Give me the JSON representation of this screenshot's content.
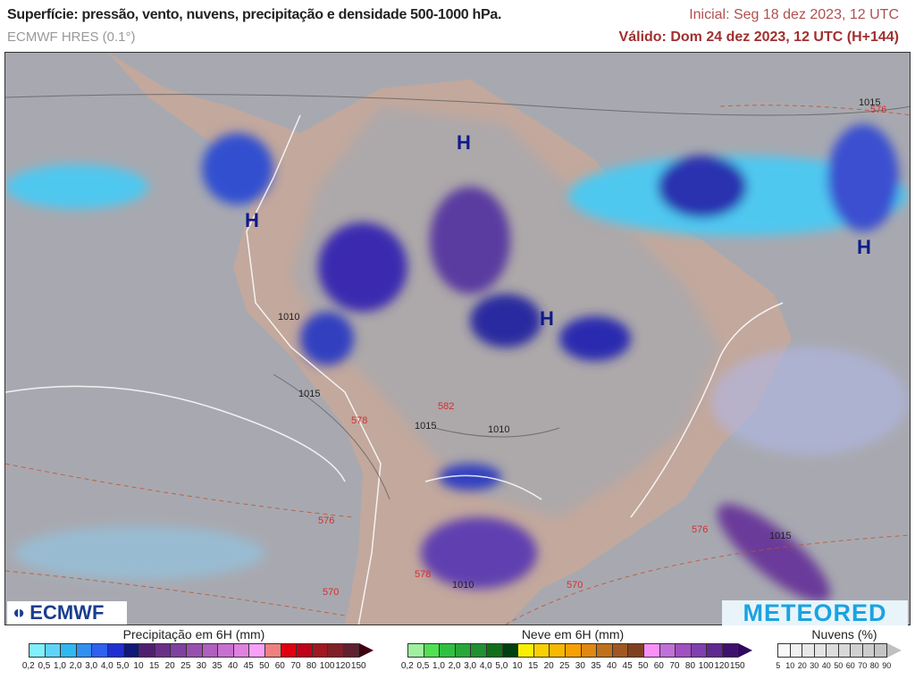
{
  "header": {
    "title": "Superfície: pressão, vento, nuvens, precipitação e densidade 500-1000 hPa.",
    "model": "ECMWF HRES (0.1°)",
    "initial": "Inicial: Seg 18 dez 2023, 12 UTC",
    "valid": "Válido: Dom 24 dez 2023, 12 UTC (H+144)"
  },
  "map": {
    "high_marker": "H",
    "isobar_labels": [
      "1015",
      "1015",
      "1010",
      "1010",
      "1015",
      "1010",
      "1015"
    ],
    "thickness_labels": [
      "576",
      "582",
      "578",
      "576",
      "570",
      "576",
      "570",
      "578"
    ]
  },
  "logos": {
    "left": "ECMWF",
    "right": "METEORED"
  },
  "legends": {
    "precip": {
      "title": "Precipitação em 6H (mm)",
      "ticks": [
        "0,2",
        "0,5",
        "1,0",
        "2,0",
        "3,0",
        "4,0",
        "5,0",
        "10",
        "15",
        "20",
        "25",
        "30",
        "35",
        "40",
        "45",
        "50",
        "60",
        "70",
        "80",
        "100",
        "120",
        "150"
      ],
      "colors": [
        "#80f0fc",
        "#60d4f8",
        "#30b8f0",
        "#3090f0",
        "#3060f0",
        "#2030d0",
        "#101878",
        "#502070",
        "#6a3088",
        "#8040a0",
        "#9850b0",
        "#b060c0",
        "#c870d0",
        "#e080e0",
        "#f8a0f8",
        "#f08080",
        "#e00010",
        "#c00018",
        "#a01820",
        "#802028",
        "#602030"
      ],
      "arrow": "#400010"
    },
    "snow": {
      "title": "Neve em 6H (mm)",
      "ticks": [
        "0,2",
        "0,5",
        "1,0",
        "2,0",
        "3,0",
        "4,0",
        "5,0",
        "10",
        "15",
        "20",
        "25",
        "30",
        "35",
        "40",
        "45",
        "50",
        "60",
        "70",
        "80",
        "100",
        "120",
        "150"
      ],
      "colors": [
        "#a0f0a0",
        "#50e050",
        "#30c040",
        "#28a838",
        "#209030",
        "#107018",
        "#004010",
        "#f8f000",
        "#f8d000",
        "#f8b800",
        "#f8a000",
        "#e08810",
        "#c07018",
        "#a05820",
        "#804020",
        "#f890f8",
        "#c070d8",
        "#a050c0",
        "#8040b0",
        "#602890",
        "#401070"
      ],
      "arrow": "#300860"
    },
    "clouds": {
      "title": "Nuvens (%)",
      "ticks": [
        "5",
        "10",
        "20",
        "30",
        "40",
        "50",
        "60",
        "70",
        "80",
        "90"
      ],
      "colors": [
        "#f8f8f8",
        "#f0f0f0",
        "#e8e8e8",
        "#e4e4e4",
        "#dcdcdc",
        "#d8d8d8",
        "#d0d0d0",
        "#cccccc",
        "#c4c4c4"
      ],
      "arrow": "#c0c0c0"
    }
  }
}
